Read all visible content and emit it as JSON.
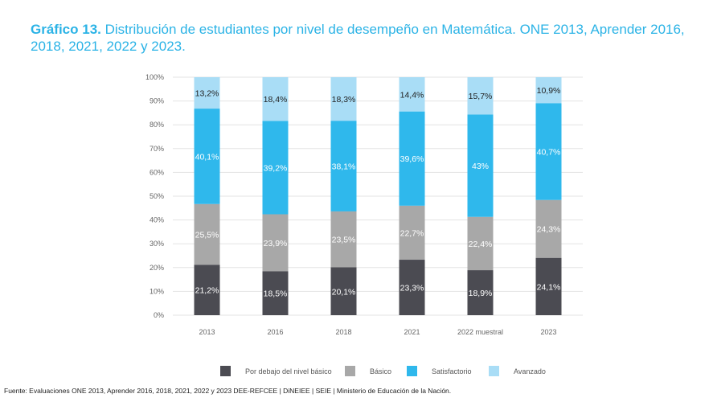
{
  "header": {
    "lead": "Gráfico 13.",
    "title": "Distribución de estudiantes por nivel de desempeño en Matemática. ONE 2013, Aprender 2016, 2018, 2021, 2022 y 2023."
  },
  "chart_data": {
    "type": "bar",
    "stacked": true,
    "categories": [
      "2013",
      "2016",
      "2018",
      "2021",
      "2022 muestral",
      "2023"
    ],
    "series": [
      {
        "name": "Por debajo del nivel básico",
        "color": "#4b4b52",
        "values": [
          21.2,
          18.5,
          20.1,
          23.3,
          18.9,
          24.1
        ],
        "labels": [
          "21,2%",
          "18,5%",
          "20,1%",
          "23,3%",
          "18,9%",
          "24,1%"
        ],
        "label_color": "#ffffff"
      },
      {
        "name": "Básico",
        "color": "#a8a8a8",
        "values": [
          25.5,
          23.9,
          23.5,
          22.7,
          22.4,
          24.3
        ],
        "labels": [
          "25,5%",
          "23,9%",
          "23,5%",
          "22,7%",
          "22,4%",
          "24,3%"
        ],
        "label_color": "#ffffff"
      },
      {
        "name": "Satisfactorio",
        "color": "#2fb8ec",
        "values": [
          40.1,
          39.2,
          38.1,
          39.6,
          43,
          40.7
        ],
        "labels": [
          "40,1%",
          "39,2%",
          "38,1%",
          "39,6%",
          "43%",
          "40,7%"
        ],
        "label_color": "#ffffff"
      },
      {
        "name": "Avanzado",
        "color": "#a9ddf6",
        "values": [
          13.2,
          18.4,
          18.3,
          14.4,
          15.7,
          10.9
        ],
        "labels": [
          "13,2%",
          "18,4%",
          "18,3%",
          "14,4%",
          "15,7%",
          "10,9%"
        ],
        "label_color": "#222222"
      }
    ],
    "yticks": [
      "0%",
      "10%",
      "20%",
      "30%",
      "40%",
      "50%",
      "60%",
      "70%",
      "80%",
      "90%",
      "100%"
    ],
    "ylim": [
      0,
      100
    ],
    "grid": true,
    "legend": "bottom"
  },
  "footer": {
    "source": "Fuente: Evaluaciones ONE 2013, Aprender 2016, 2018, 2021, 2022 y 2023 DEE-REFCEE | DiNEIEE | SEIE | Ministerio de Educación de la Nación."
  }
}
